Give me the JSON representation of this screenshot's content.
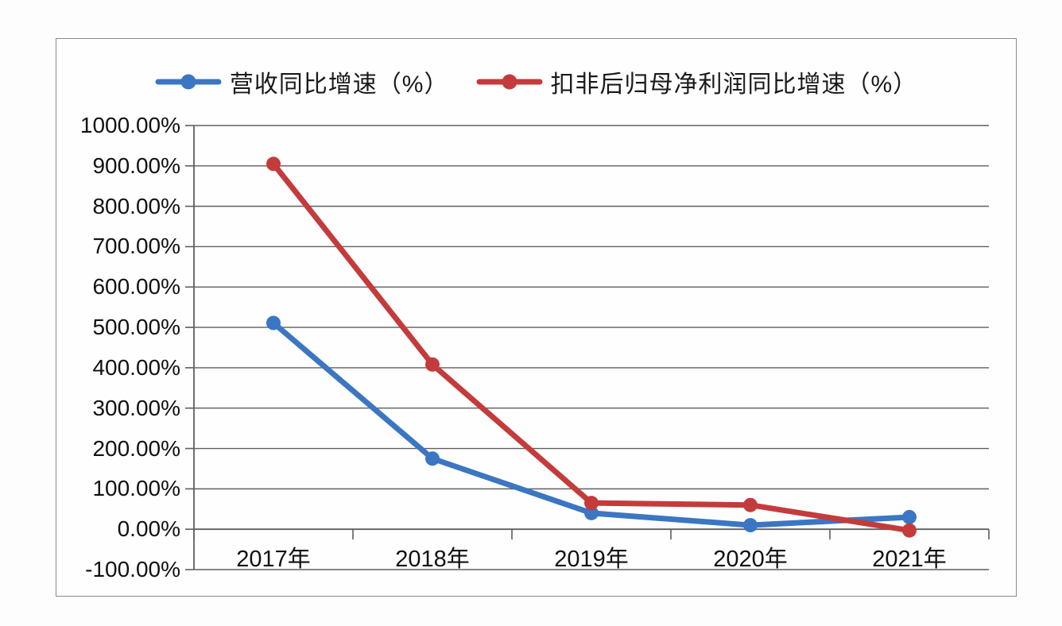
{
  "chart_data": {
    "type": "line",
    "title": "",
    "categories": [
      "2017年",
      "2018年",
      "2019年",
      "2020年",
      "2021年"
    ],
    "series": [
      {
        "name": "营收同比增速（%）",
        "color": "#3B76C2",
        "values": [
          511,
          175,
          40,
          10,
          30
        ]
      },
      {
        "name": "扣非后归母净利润同比增速（%）",
        "color": "#C43B3C",
        "values": [
          905,
          408,
          65,
          60,
          -3
        ]
      }
    ],
    "ylim": [
      -100,
      1000
    ],
    "ytick_step": 100,
    "ytick_labels": [
      "1000.00%",
      "900.00%",
      "800.00%",
      "700.00%",
      "600.00%",
      "500.00%",
      "400.00%",
      "300.00%",
      "200.00%",
      "100.00%",
      "0.00%",
      "-100.00%"
    ],
    "grid": "horizontal",
    "gridline_color": "#5f5f5f",
    "legend_position": "top",
    "axis_cross_y": 0
  }
}
